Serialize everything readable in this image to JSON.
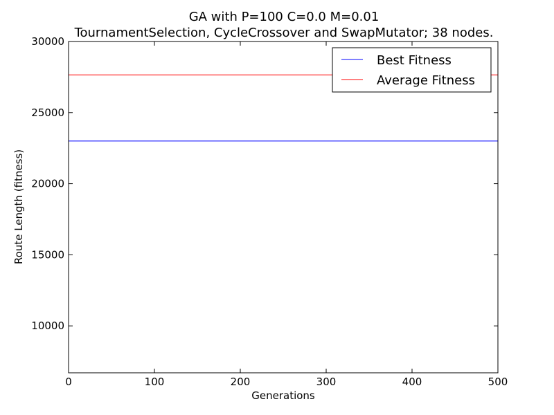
{
  "chart_data": {
    "type": "line",
    "title": "GA with P=100 C=0.0 M=0.01",
    "subtitle": "TournamentSelection, CycleCrossover and SwapMutator; 38 nodes.",
    "xlabel": "Generations",
    "ylabel": "Route Length (fitness)",
    "xlim": [
      0,
      500
    ],
    "ylim": [
      6700,
      30000
    ],
    "xticks": [
      0,
      100,
      200,
      300,
      400,
      500
    ],
    "yticks": [
      10000,
      15000,
      20000,
      25000,
      30000
    ],
    "grid": false,
    "legend_position": "top-right",
    "series": [
      {
        "name": "Best Fitness",
        "color": "#0000ff",
        "x": [
          0,
          500
        ],
        "y": [
          23000,
          23000
        ]
      },
      {
        "name": "Average Fitness",
        "color": "#ff0000",
        "x": [
          0,
          500
        ],
        "y": [
          27650,
          27650
        ]
      }
    ]
  }
}
